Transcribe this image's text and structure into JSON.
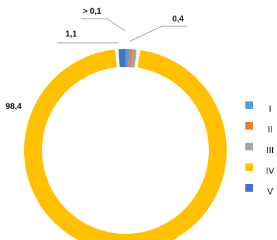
{
  "chart_data": {
    "type": "pie",
    "style": "donut",
    "categories": [
      "I",
      "II",
      "III",
      "IV",
      "V"
    ],
    "values": [
      0.05,
      0.05,
      0.4,
      98.4,
      1.1
    ],
    "colors": [
      "#5b9bd5",
      "#ed7d31",
      "#a5a5a5",
      "#ffc000",
      "#4472c4"
    ],
    "data_labels": [
      "> 0,1",
      "",
      "0,4",
      "98,4",
      "1,1"
    ],
    "legend_position": "right"
  }
}
